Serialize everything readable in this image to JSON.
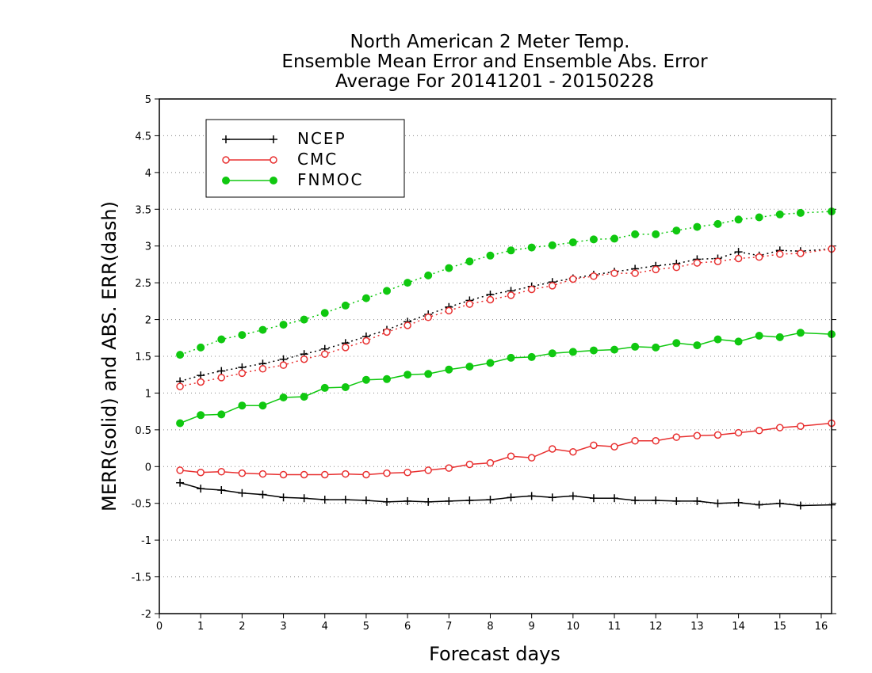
{
  "chart_data": {
    "type": "line",
    "title": [
      "North American 2 Meter Temp.",
      "Ensemble Mean Error and Ensemble Abs. Error",
      "Average For 20141201 - 20150228"
    ],
    "xlabel": "Forecast days",
    "ylabel": "MERR(solid) and ABS. ERR(dash)",
    "xlim": [
      0,
      16.25
    ],
    "ylim": [
      -2,
      5
    ],
    "xticks": [
      "0",
      "1",
      "2",
      "3",
      "4",
      "5",
      "6",
      "7",
      "8",
      "9",
      "10",
      "11",
      "12",
      "13",
      "14",
      "15",
      "16"
    ],
    "yticks": [
      "-2",
      "-1.5",
      "-1",
      "-0.5",
      "0",
      "0.5",
      "1",
      "1.5",
      "2",
      "2.5",
      "3",
      "3.5",
      "4",
      "4.5",
      "5"
    ],
    "grid": "horizontal dotted",
    "legend": {
      "position": "top-left"
    },
    "x": [
      0.5,
      1,
      1.5,
      2,
      2.5,
      3,
      3.5,
      4,
      4.5,
      5,
      5.5,
      6,
      6.5,
      7,
      7.5,
      8,
      8.5,
      9,
      9.5,
      10,
      10.5,
      11,
      11.5,
      12,
      12.5,
      13,
      13.5,
      14,
      14.5,
      15,
      15.5,
      16.25
    ],
    "series": [
      {
        "name": "NCEP",
        "color": "#000000",
        "marker": "plus",
        "merr": [
          -0.22,
          -0.3,
          -0.32,
          -0.36,
          -0.38,
          -0.42,
          -0.43,
          -0.45,
          -0.45,
          -0.46,
          -0.48,
          -0.47,
          -0.48,
          -0.47,
          -0.46,
          -0.45,
          -0.42,
          -0.4,
          -0.42,
          -0.4,
          -0.43,
          -0.43,
          -0.46,
          -0.46,
          -0.47,
          -0.47,
          -0.5,
          -0.49,
          -0.52,
          -0.5,
          -0.53,
          -0.52
        ],
        "abs_err": [
          1.16,
          1.24,
          1.3,
          1.35,
          1.4,
          1.46,
          1.53,
          1.6,
          1.68,
          1.77,
          1.86,
          1.97,
          2.07,
          2.17,
          2.26,
          2.34,
          2.39,
          2.45,
          2.51,
          2.56,
          2.61,
          2.65,
          2.69,
          2.73,
          2.76,
          2.82,
          2.83,
          2.92,
          2.87,
          2.94,
          2.93,
          2.96
        ]
      },
      {
        "name": "CMC",
        "color": "#e83030",
        "marker": "open-circle",
        "merr": [
          -0.05,
          -0.08,
          -0.07,
          -0.09,
          -0.1,
          -0.11,
          -0.11,
          -0.11,
          -0.1,
          -0.11,
          -0.09,
          -0.08,
          -0.05,
          -0.02,
          0.03,
          0.05,
          0.14,
          0.12,
          0.24,
          0.2,
          0.29,
          0.27,
          0.35,
          0.35,
          0.4,
          0.42,
          0.43,
          0.46,
          0.49,
          0.53,
          0.55,
          0.59
        ],
        "abs_err": [
          1.09,
          1.15,
          1.21,
          1.27,
          1.33,
          1.38,
          1.46,
          1.53,
          1.62,
          1.71,
          1.83,
          1.92,
          2.03,
          2.12,
          2.21,
          2.27,
          2.33,
          2.41,
          2.46,
          2.55,
          2.59,
          2.63,
          2.63,
          2.68,
          2.71,
          2.77,
          2.79,
          2.83,
          2.85,
          2.89,
          2.9,
          2.96
        ]
      },
      {
        "name": "FNMOC",
        "color": "#10c810",
        "marker": "filled-circle",
        "merr": [
          0.59,
          0.7,
          0.71,
          0.83,
          0.83,
          0.94,
          0.95,
          1.07,
          1.08,
          1.18,
          1.19,
          1.25,
          1.26,
          1.32,
          1.36,
          1.41,
          1.48,
          1.49,
          1.54,
          1.56,
          1.58,
          1.59,
          1.63,
          1.62,
          1.68,
          1.65,
          1.73,
          1.7,
          1.78,
          1.76,
          1.82,
          1.8
        ],
        "abs_err": [
          1.52,
          1.62,
          1.73,
          1.79,
          1.86,
          1.93,
          2.0,
          2.09,
          2.19,
          2.29,
          2.39,
          2.5,
          2.6,
          2.7,
          2.79,
          2.87,
          2.94,
          2.98,
          3.01,
          3.05,
          3.09,
          3.1,
          3.16,
          3.16,
          3.21,
          3.26,
          3.3,
          3.36,
          3.39,
          3.43,
          3.45,
          3.47
        ]
      }
    ]
  }
}
